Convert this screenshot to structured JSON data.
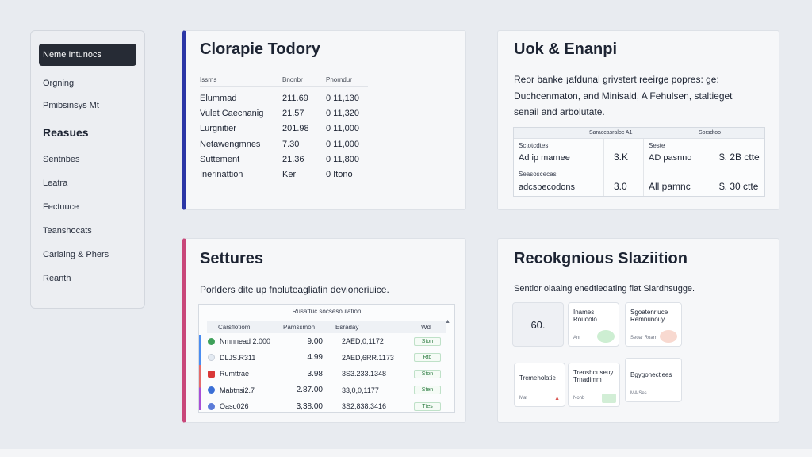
{
  "sidebar": {
    "active": "Neme Intunocs",
    "group1": [
      "Orgning",
      "Pmibsinsys Mt"
    ],
    "heading": "Reasues",
    "group2": [
      "Sentnbes",
      "Leatra",
      "Fectuuce",
      "Teanshocats",
      "Carlaing & Phers",
      "Reanth"
    ]
  },
  "card1": {
    "title": "Clorapie Todory",
    "headers": [
      "Issrns",
      "Bnonbr",
      "Pnorndur"
    ],
    "rows": [
      [
        "Elummad",
        "211.69",
        "0  11,130"
      ],
      [
        "Vulet Caecnanig",
        "21.57",
        "0  11,320"
      ],
      [
        "Lurgnitier",
        "201.98",
        "0  11,000"
      ],
      [
        "Netawengmnes",
        "7.30",
        "0  11,000"
      ],
      [
        "Suttement",
        "21.36",
        "0  11,800"
      ],
      [
        "Inerinattion",
        "Ker",
        "0  Itono"
      ]
    ]
  },
  "card2": {
    "title": "Uok & Enanpi",
    "description": "Reor banke ¡afdunal grivstert reeirge popres: ge: Duchcenmaton, and Minisald, A Fehulsen, staltieget senail and arbolutate.",
    "table_headers": [
      "",
      "Saraccasraloc   A1",
      "",
      "Sorsdtoo"
    ],
    "rows": [
      {
        "tag": "Sctotcdtes",
        "label": "Ad ip mamee",
        "value": "3.K",
        "tag2": "Seste",
        "label2": "AD pasnno",
        "price": "$. 2B ctte"
      },
      {
        "tag": "Seasoscecas",
        "label": "adcspecodons",
        "value": "3.0",
        "tag2": "",
        "label2": "All pamnc",
        "price": "$. 30 ctte"
      }
    ]
  },
  "card3": {
    "title": "Settures",
    "description": "Porlders dite up fnoluteagliatin devioneriuice.",
    "table_title": "Rusattuc  socsesoulation",
    "headers": [
      "Carsflotiom",
      "Pamssmon",
      "Esraday",
      "Wd"
    ],
    "rows": [
      {
        "name": "Nmnnead 2.000",
        "price": "9.00",
        "code": "2AED,0,1172",
        "status": "Ston"
      },
      {
        "name": "DLJS.R311",
        "price": "4.99",
        "code": "2AED,6RR.1173",
        "status": "Rtd"
      },
      {
        "name": "Rumttrae",
        "price": "3.98",
        "code": "3S3.233.1348",
        "status": "Ston"
      },
      {
        "name": "Mabtnsi2.7",
        "price": "2.87.00",
        "code": "33,0,0,1177",
        "status": "Sten"
      },
      {
        "name": "Oaso026",
        "price": "3,38.00",
        "code": "3S2,838.3416",
        "status": "Ttes"
      }
    ],
    "row_colors": [
      "#3ea05a",
      "#e3eaf2",
      "#d93838",
      "#3b6fd6",
      "#5b7bd8"
    ]
  },
  "card4": {
    "title": "Recokgnious Slaziition",
    "description": "Sentior olaaing enedtiedating flat Slardhsugge.",
    "tiles": [
      {
        "title": "60.",
        "sub": ""
      },
      {
        "title": "Inames\nRouoolo",
        "sub": "Anr",
        "color": "#cdeed2"
      },
      {
        "title": "Sgoatenriuce\nRemnunouy",
        "sub": "Seoar Roarn",
        "color": "#f8d9d0"
      },
      {
        "title": "Trcmeholatie",
        "sub": "Mat",
        "color": "#f4cccc"
      },
      {
        "title": "Trenshouseuy\nTrnadimm",
        "sub": "Nonb",
        "color": "#d2eed6"
      },
      {
        "title": "Bgygonectiees",
        "sub": "MA Ses",
        "color": ""
      }
    ]
  }
}
